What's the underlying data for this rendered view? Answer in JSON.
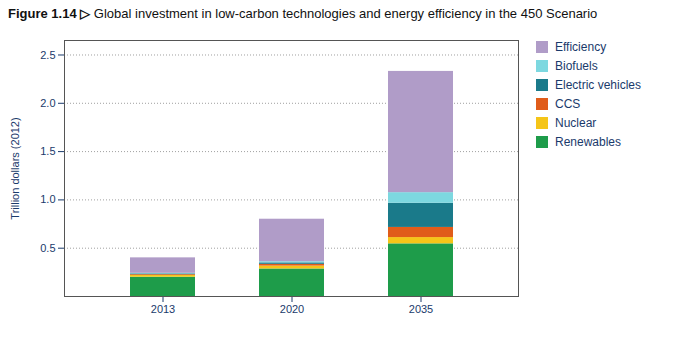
{
  "chart_data": {
    "type": "bar",
    "stacked": true,
    "title": "Figure 1.14 ▷",
    "subtitle": "Global investment in low-carbon technologies and energy efficiency in the 450 Scenario",
    "ylabel": "Trillion dollars (2012)",
    "categories": [
      "2013",
      "2020",
      "2035"
    ],
    "series": [
      {
        "name": "Renewables",
        "color": "#1e9c4a",
        "values": [
          0.2,
          0.285,
          0.545
        ]
      },
      {
        "name": "Nuclear",
        "color": "#f5c518",
        "values": [
          0.018,
          0.03,
          0.065
        ]
      },
      {
        "name": "CCS",
        "color": "#e05c1a",
        "values": [
          0.008,
          0.018,
          0.105
        ]
      },
      {
        "name": "Electric vehicles",
        "color": "#1a7a8a",
        "values": [
          0.008,
          0.015,
          0.25
        ]
      },
      {
        "name": "Biofuels",
        "color": "#7dd8e0",
        "values": [
          0.006,
          0.012,
          0.11
        ]
      },
      {
        "name": "Efficiency",
        "color": "#b09cc8",
        "values": [
          0.16,
          0.44,
          1.255
        ]
      }
    ],
    "ylim": [
      0,
      2.65
    ],
    "yticks": [
      0.5,
      {
        "value": 1.0,
        "label": "1.0"
      },
      1.5,
      {
        "value": 2.0,
        "label": "2.0"
      },
      2.5
    ],
    "grid": true,
    "legend": "right"
  }
}
